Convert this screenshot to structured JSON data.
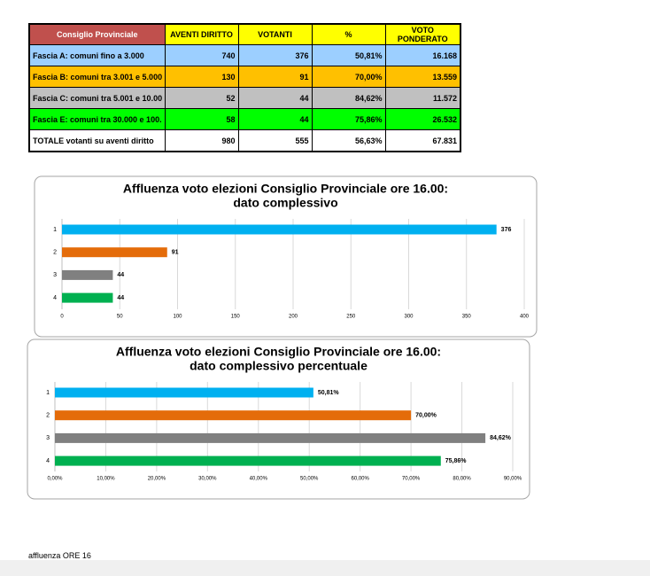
{
  "table": {
    "header": [
      "Consiglio Provinciale",
      "AVENTI DIRITTO",
      "VOTANTI",
      "%",
      "VOTO PONDERATO"
    ],
    "rows": [
      [
        "Fascia A: comuni fino a 3.000",
        "740",
        "376",
        "50,81%",
        "16.168"
      ],
      [
        "Fascia B: comuni tra 3.001 e 5.000",
        "130",
        "91",
        "70,00%",
        "13.559"
      ],
      [
        "Fascia C: comuni tra 5.001 e 10.00",
        "52",
        "44",
        "84,62%",
        "11.572"
      ],
      [
        "Fascia E: comuni tra 30.000 e 100.",
        "58",
        "44",
        "75,86%",
        "26.532"
      ],
      [
        "TOTALE votanti su aventi diritto",
        "980",
        "555",
        "56,63%",
        "67.831"
      ]
    ]
  },
  "chart_data": [
    {
      "type": "hbar",
      "title": [
        "Affluenza voto elezioni Consiglio Provinciale ore 16.00:",
        "dato complessivo"
      ],
      "categories": [
        "1",
        "2",
        "3",
        "4"
      ],
      "values": [
        376,
        91,
        44,
        44
      ],
      "colors": [
        "#00b0f0",
        "#e46c0a",
        "#808080",
        "#00b050"
      ],
      "xlim": [
        0,
        400
      ],
      "xticks": [
        0,
        50,
        100,
        150,
        200,
        250,
        300,
        350,
        400
      ],
      "grid": true
    },
    {
      "type": "hbar",
      "title": [
        "Affluenza voto elezioni Consiglio Provinciale ore 16.00:",
        "dato complessivo percentuale"
      ],
      "categories": [
        "1",
        "2",
        "3",
        "4"
      ],
      "values": [
        50.81,
        70,
        84.62,
        75.86
      ],
      "value_labels": [
        "50,81%",
        "70,00%",
        "84,62%",
        "75,86%"
      ],
      "colors": [
        "#00b0f0",
        "#e46c0a",
        "#808080",
        "#00b050"
      ],
      "xlim": [
        0,
        90
      ],
      "xticks": [
        {
          "value": 0,
          "label": "0,00%"
        },
        {
          "value": 10,
          "label": "10,00%"
        },
        {
          "value": 20,
          "label": "20,00%"
        },
        {
          "value": 30,
          "label": "30,00%"
        },
        {
          "value": 40,
          "label": "40,00%"
        },
        {
          "value": 50,
          "label": "50,00%"
        },
        {
          "value": 60,
          "label": "60,00%"
        },
        {
          "value": 70,
          "label": "70,00%"
        },
        {
          "value": 80,
          "label": "80,00%"
        },
        {
          "value": 90,
          "label": "90,00%"
        }
      ],
      "grid": true
    }
  ],
  "footer": "affluenza ORE 16"
}
